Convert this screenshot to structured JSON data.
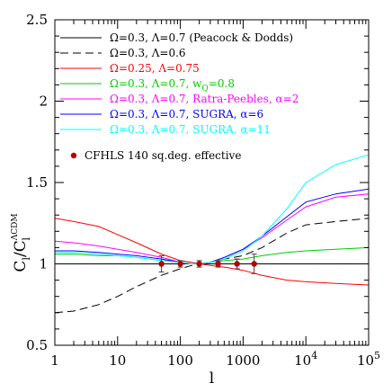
{
  "chart_data": {
    "type": "line",
    "xlabel": "l",
    "ylabel_main": "C",
    "ylabel_sub": "l",
    "ylabel_sep": "/",
    "ylabel_den": "C",
    "ylabel_den_sup": "ΛCDM",
    "ylabel_den_sub": "l",
    "x_scale": "log",
    "xlim": [
      1,
      100000
    ],
    "ylim": [
      0.5,
      2.5
    ],
    "x_ticks": [
      {
        "value": 1,
        "label": "1"
      },
      {
        "value": 10,
        "label": "10"
      },
      {
        "value": 100,
        "label": "100"
      },
      {
        "value": 1000,
        "label": "1000"
      },
      {
        "value": 10000,
        "label": "10",
        "sup": "4"
      },
      {
        "value": 100000,
        "label": "10",
        "sup": "5"
      }
    ],
    "y_ticks": [
      {
        "value": 0.5,
        "label": "0.5"
      },
      {
        "value": 1,
        "label": "1"
      },
      {
        "value": 1.5,
        "label": "1.5"
      },
      {
        "value": 2,
        "label": "2"
      },
      {
        "value": 2.5,
        "label": "2.5"
      }
    ],
    "reference_line": 1,
    "legend_position": "top-left",
    "series": [
      {
        "name": "Ω=0.3, Λ=0.7 (Peacock & Dodds)",
        "color": "#000000",
        "dash": "solid",
        "x": [
          1,
          100000
        ],
        "y": [
          1.0,
          1.0
        ]
      },
      {
        "name": "Ω=0.3, Λ=0.6",
        "color": "#000000",
        "dash": "dashed",
        "x": [
          1,
          2,
          5,
          10,
          20,
          50,
          100,
          150,
          200,
          300,
          500,
          1000,
          2000,
          5000,
          10000,
          30000,
          100000
        ],
        "y": [
          0.7,
          0.71,
          0.75,
          0.8,
          0.86,
          0.93,
          0.97,
          0.99,
          1.0,
          1.01,
          1.03,
          1.05,
          1.1,
          1.19,
          1.24,
          1.26,
          1.28
        ]
      },
      {
        "name": "Ω=0.25, Λ=0.75",
        "color": "#ff0000",
        "dash": "solid",
        "x": [
          1,
          2,
          5,
          10,
          20,
          50,
          100,
          150,
          200,
          300,
          500,
          1000,
          2000,
          5000,
          10000,
          30000,
          100000
        ],
        "y": [
          1.28,
          1.26,
          1.23,
          1.18,
          1.13,
          1.06,
          1.02,
          1.01,
          1.0,
          0.99,
          0.98,
          0.96,
          0.93,
          0.9,
          0.89,
          0.88,
          0.87
        ]
      },
      {
        "name": "Ω=0.3, Λ=0.7, w",
        "name_sub": "Q",
        "name_suffix": "=0.8",
        "color": "#00cc00",
        "dash": "solid",
        "x": [
          1,
          2,
          5,
          10,
          20,
          50,
          100,
          150,
          200,
          300,
          500,
          1000,
          2000,
          5000,
          10000,
          30000,
          100000
        ],
        "y": [
          1.06,
          1.06,
          1.05,
          1.05,
          1.04,
          1.02,
          1.01,
          1.0,
          1.0,
          1.01,
          1.02,
          1.03,
          1.05,
          1.07,
          1.08,
          1.09,
          1.1
        ]
      },
      {
        "name": "Ω=0.3, Λ=0.7, Ratra-Peebles, α=2",
        "color": "#ff00ff",
        "dash": "solid",
        "x": [
          1,
          2,
          5,
          10,
          20,
          50,
          100,
          150,
          200,
          300,
          500,
          1000,
          2000,
          5000,
          10000,
          30000,
          100000
        ],
        "y": [
          1.14,
          1.13,
          1.11,
          1.09,
          1.07,
          1.04,
          1.01,
          1.0,
          1.0,
          1.01,
          1.04,
          1.09,
          1.16,
          1.27,
          1.35,
          1.41,
          1.43
        ]
      },
      {
        "name": "Ω=0.3, Λ=0.7, SUGRA, α=6",
        "color": "#0000ff",
        "dash": "solid",
        "x": [
          1,
          2,
          5,
          10,
          20,
          50,
          100,
          150,
          200,
          300,
          500,
          1000,
          2000,
          5000,
          10000,
          30000,
          100000
        ],
        "y": [
          1.08,
          1.08,
          1.07,
          1.06,
          1.05,
          1.03,
          1.01,
          1.0,
          1.0,
          1.01,
          1.04,
          1.09,
          1.17,
          1.29,
          1.38,
          1.43,
          1.46
        ]
      },
      {
        "name": "Ω=0.3, Λ=0.7, SUGRA, α=11",
        "color": "#00ffff",
        "dash": "solid",
        "x": [
          1,
          2,
          5,
          10,
          20,
          50,
          100,
          150,
          200,
          300,
          500,
          1000,
          2000,
          5000,
          10000,
          30000,
          100000
        ],
        "y": [
          1.07,
          1.07,
          1.06,
          1.05,
          1.04,
          1.02,
          1.01,
          1.0,
          1.0,
          1.01,
          1.03,
          1.08,
          1.17,
          1.34,
          1.5,
          1.61,
          1.67
        ]
      }
    ],
    "points": {
      "name": "CFHLS 140 sq.deg. effective",
      "color": "#b30000",
      "data": [
        {
          "x": 50,
          "y": 1.0,
          "err": 0.05
        },
        {
          "x": 100,
          "y": 1.0,
          "err": 0.02
        },
        {
          "x": 200,
          "y": 1.0,
          "err": 0.02
        },
        {
          "x": 400,
          "y": 1.0,
          "err": 0.02
        },
        {
          "x": 800,
          "y": 1.0,
          "err": 0.03
        },
        {
          "x": 1500,
          "y": 1.0,
          "err": 0.06
        }
      ]
    }
  }
}
